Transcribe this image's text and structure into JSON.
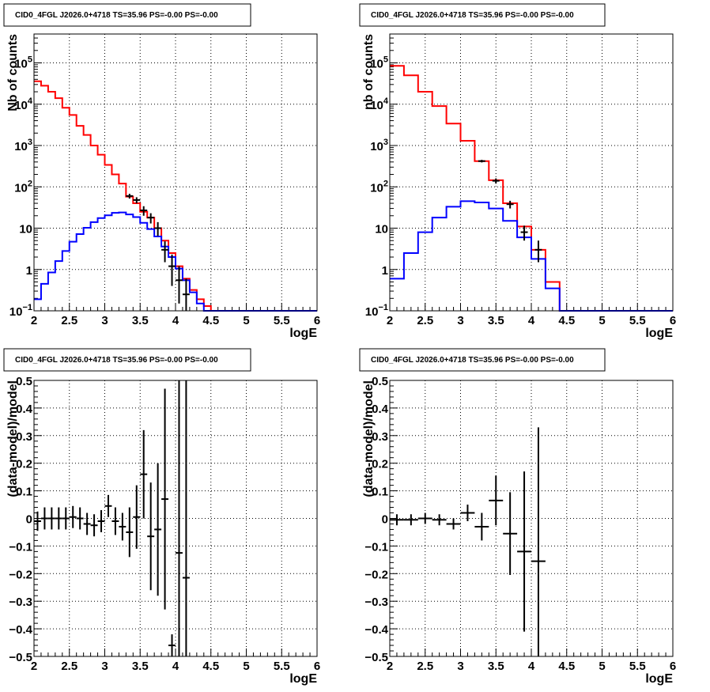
{
  "chart_data": [
    {
      "type": "line",
      "title": "CID0_4FGL J2026.0+4718 TS=35.96 PS=-0.00 PS=-0.00",
      "xlabel": "logE",
      "ylabel": "Nb of counts",
      "xlim": [
        2,
        6
      ],
      "ylim": [
        0.1,
        500000
      ],
      "yscale": "log",
      "grid": true,
      "xticks": [
        "2",
        "2.5",
        "3",
        "3.5",
        "4",
        "4.5",
        "5",
        "5.5",
        "6"
      ],
      "yticks": [
        {
          "v": 0.1,
          "base": "10",
          "exp": "−1"
        },
        {
          "v": 1,
          "label": "1"
        },
        {
          "v": 10,
          "label": "10"
        },
        {
          "v": 100,
          "base": "10",
          "exp": "2"
        },
        {
          "v": 1000,
          "base": "10",
          "exp": "3"
        },
        {
          "v": 10000,
          "base": "10",
          "exp": "4"
        },
        {
          "v": 100000,
          "base": "10",
          "exp": "5"
        }
      ],
      "bin_edges": [
        2.0,
        2.1,
        2.2,
        2.3,
        2.4,
        2.5,
        2.6,
        2.7,
        2.8,
        2.9,
        3.0,
        3.1,
        3.2,
        3.3,
        3.4,
        3.5,
        3.6,
        3.7,
        3.8,
        3.9,
        4.0,
        4.1,
        4.2,
        4.3,
        4.4,
        4.5,
        4.6,
        4.7,
        4.8,
        4.9,
        5.0,
        5.1,
        5.2,
        5.3,
        5.4,
        5.5,
        5.6,
        5.7,
        5.8,
        5.9,
        6.0
      ],
      "series": [
        {
          "color": "#ff0000",
          "kind": "hist",
          "values": [
            36000,
            28000,
            20000,
            14000,
            8200,
            5500,
            3000,
            1800,
            1000,
            600,
            340,
            200,
            120,
            58,
            40,
            25,
            18,
            10,
            5,
            2.5,
            1.2,
            0.6,
            0.32,
            0.19,
            0.13,
            0.1,
            0.1,
            0.1,
            0.1,
            0.1,
            0.1,
            0.1,
            0.1,
            0.1,
            0.1,
            0.1,
            0.1,
            0.1,
            0.1,
            0.1
          ]
        },
        {
          "color": "#0000ff",
          "kind": "hist",
          "values": [
            0.19,
            0.45,
            0.85,
            1.6,
            2.8,
            4.7,
            7.2,
            10.2,
            14,
            17.5,
            20.5,
            23.5,
            24,
            21.5,
            18.5,
            13.5,
            9.5,
            6.3,
            3.6,
            2.0,
            1.05,
            0.55,
            0.28,
            0.15,
            0.1,
            0.1,
            0.1,
            0.1,
            0.1,
            0.1,
            0.1,
            0.1,
            0.1,
            0.1,
            0.1,
            0.1,
            0.1,
            0.1,
            0.1,
            0.1
          ]
        },
        {
          "color": "#000000",
          "kind": "points",
          "x": [
            3.35,
            3.45,
            3.55,
            3.65,
            3.75,
            3.85,
            3.95,
            4.05,
            4.15
          ],
          "y": [
            60,
            48,
            27,
            18,
            10,
            3,
            1.2,
            0.55,
            0.25
          ],
          "ylo": [
            52,
            40,
            20,
            13,
            6.5,
            1.5,
            0.4,
            0.15,
            0.1
          ],
          "yhi": [
            68,
            56,
            34,
            23,
            14,
            4.8,
            2.3,
            1.2,
            0.6
          ]
        }
      ]
    },
    {
      "type": "line",
      "title": "CID0_4FGL J2026.0+4718 TS=35.96 PS=-0.00 PS=-0.00",
      "xlabel": "logE",
      "ylabel": "nb of counts",
      "xlim": [
        2,
        6
      ],
      "ylim": [
        0.1,
        500000
      ],
      "yscale": "log",
      "grid": true,
      "xticks": [
        "2",
        "2.5",
        "3",
        "3.5",
        "4",
        "4.5",
        "5",
        "5.5",
        "6"
      ],
      "yticks": [
        {
          "v": 0.1,
          "base": "10",
          "exp": "−1"
        },
        {
          "v": 1,
          "label": "1"
        },
        {
          "v": 10,
          "label": "10"
        },
        {
          "v": 100,
          "base": "10",
          "exp": "2"
        },
        {
          "v": 1000,
          "base": "10",
          "exp": "3"
        },
        {
          "v": 10000,
          "base": "10",
          "exp": "4"
        },
        {
          "v": 100000,
          "base": "10",
          "exp": "5"
        }
      ],
      "bin_edges": [
        2.0,
        2.2,
        2.4,
        2.6,
        2.8,
        3.0,
        3.2,
        3.4,
        3.6,
        3.8,
        4.0,
        4.2,
        4.4,
        4.6,
        4.8,
        5.0,
        5.2,
        5.4,
        5.6,
        5.8,
        6.0
      ],
      "series": [
        {
          "color": "#ff0000",
          "kind": "hist",
          "values": [
            85000,
            50000,
            20000,
            9000,
            3400,
            1300,
            420,
            145,
            40,
            11,
            3,
            0.5,
            0.1,
            0.1,
            0.1,
            0.1,
            0.1,
            0.1,
            0.1,
            0.1
          ]
        },
        {
          "color": "#0000ff",
          "kind": "hist",
          "values": [
            0.6,
            2.5,
            8,
            18,
            33,
            45,
            42,
            30,
            15,
            6,
            1.8,
            0.35,
            0.1,
            0.1,
            0.1,
            0.1,
            0.1,
            0.1,
            0.1,
            0.1
          ]
        },
        {
          "color": "#000000",
          "kind": "points",
          "x": [
            3.3,
            3.5,
            3.7,
            3.9,
            4.1
          ],
          "y": [
            420,
            140,
            38,
            8,
            3
          ],
          "ylo": [
            390,
            120,
            30,
            5,
            1.5
          ],
          "yhi": [
            450,
            160,
            46,
            11.5,
            5
          ]
        }
      ]
    },
    {
      "type": "scatter",
      "title": "CID0_4FGL J2026.0+4718 TS=35.96 PS=-0.00 PS=-0.00",
      "xlabel": "logE",
      "ylabel": "(data-model)/model",
      "xlim": [
        2,
        6
      ],
      "ylim": [
        -0.5,
        0.5
      ],
      "grid": true,
      "xticks": [
        "2",
        "2.5",
        "3",
        "3.5",
        "4",
        "4.5",
        "5",
        "5.5",
        "6"
      ],
      "yticks": [
        {
          "v": -0.5,
          "label": "−0.5"
        },
        {
          "v": -0.4,
          "label": "−0.4"
        },
        {
          "v": -0.3,
          "label": "−0.3"
        },
        {
          "v": -0.2,
          "label": "−0.2"
        },
        {
          "v": -0.1,
          "label": "−0.1"
        },
        {
          "v": 0,
          "label": "0"
        },
        {
          "v": 0.1,
          "label": "0.1"
        },
        {
          "v": 0.2,
          "label": "0.2"
        },
        {
          "v": 0.3,
          "label": "0.3"
        },
        {
          "v": 0.4,
          "label": "0.4"
        },
        {
          "v": 0.5,
          "label": "0.5"
        }
      ],
      "xerr": 0.05,
      "series": [
        {
          "color": "#000000",
          "kind": "points",
          "x": [
            2.05,
            2.15,
            2.25,
            2.35,
            2.45,
            2.55,
            2.65,
            2.75,
            2.85,
            2.95,
            3.05,
            3.15,
            3.25,
            3.35,
            3.45,
            3.55,
            3.65,
            3.75,
            3.85,
            3.95,
            4.05,
            4.15
          ],
          "y": [
            -0.01,
            0.0,
            0.0,
            0.0,
            0.0,
            0.005,
            0.0,
            -0.02,
            -0.025,
            -0.01,
            0.045,
            -0.01,
            -0.03,
            -0.05,
            0.005,
            0.16,
            -0.065,
            -0.04,
            0.07,
            -0.46,
            -0.125,
            -0.215
          ],
          "ylo": [
            -0.045,
            -0.04,
            -0.04,
            -0.04,
            -0.04,
            -0.035,
            -0.04,
            -0.06,
            -0.065,
            -0.05,
            0.005,
            -0.06,
            -0.08,
            -0.14,
            -0.11,
            0.0,
            -0.26,
            -0.28,
            -0.33,
            -0.5,
            -0.5,
            -0.5
          ],
          "yhi": [
            0.025,
            0.04,
            0.04,
            0.04,
            0.04,
            0.045,
            0.04,
            0.02,
            0.015,
            0.03,
            0.085,
            0.04,
            0.02,
            0.04,
            0.12,
            0.32,
            0.13,
            0.2,
            0.47,
            -0.42,
            0.5,
            0.5
          ]
        }
      ]
    },
    {
      "type": "scatter",
      "title": "CID0_4FGL J2026.0+4718 TS=35.96 PS=-0.00 PS=-0.00",
      "xlabel": "logE",
      "ylabel": "(data-model)/model",
      "xlim": [
        2,
        6
      ],
      "ylim": [
        -0.5,
        0.5
      ],
      "grid": true,
      "xticks": [
        "2",
        "2.5",
        "3",
        "3.5",
        "4",
        "4.5",
        "5",
        "5.5",
        "6"
      ],
      "yticks": [
        {
          "v": -0.5,
          "label": "−0.5"
        },
        {
          "v": -0.4,
          "label": "−0.4"
        },
        {
          "v": -0.3,
          "label": "−0.3"
        },
        {
          "v": -0.2,
          "label": "−0.2"
        },
        {
          "v": -0.1,
          "label": "−0.1"
        },
        {
          "v": 0,
          "label": "0"
        },
        {
          "v": 0.1,
          "label": "0.1"
        },
        {
          "v": 0.2,
          "label": "0.2"
        },
        {
          "v": 0.3,
          "label": "0.3"
        },
        {
          "v": 0.4,
          "label": "0.4"
        },
        {
          "v": 0.5,
          "label": "0.5"
        }
      ],
      "xerr": 0.1,
      "series": [
        {
          "color": "#000000",
          "kind": "points",
          "x": [
            2.1,
            2.3,
            2.5,
            2.7,
            2.9,
            3.1,
            3.3,
            3.5,
            3.7,
            3.9,
            4.1
          ],
          "y": [
            -0.005,
            -0.005,
            0.0,
            -0.005,
            -0.02,
            0.02,
            -0.03,
            0.065,
            -0.055,
            -0.12,
            -0.155
          ],
          "ylo": [
            -0.025,
            -0.025,
            -0.02,
            -0.025,
            -0.04,
            -0.01,
            -0.08,
            -0.025,
            -0.205,
            -0.41,
            -0.5
          ],
          "yhi": [
            0.015,
            0.015,
            0.02,
            0.015,
            0.0,
            0.05,
            0.02,
            0.155,
            0.095,
            0.17,
            0.33
          ]
        }
      ]
    }
  ]
}
